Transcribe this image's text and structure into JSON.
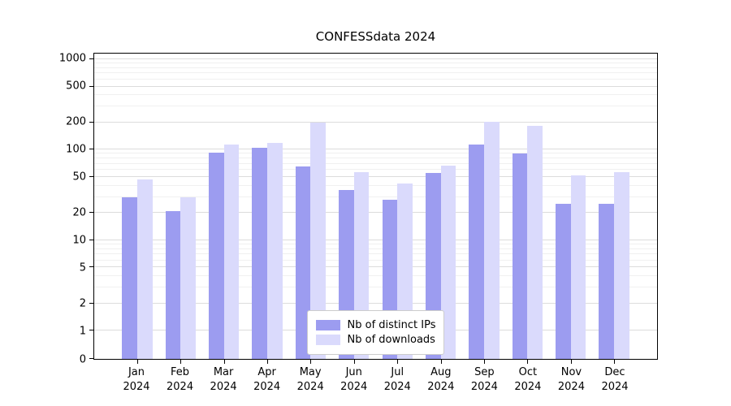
{
  "title": "CONFESSdata 2024",
  "legend": {
    "items": [
      {
        "label": "Nb of distinct IPs",
        "color": "#9c9cf0"
      },
      {
        "label": "Nb of downloads",
        "color": "#dadafc"
      }
    ]
  },
  "chart_data": {
    "type": "bar",
    "title": "CONFESSdata 2024",
    "categories": [
      "Jan 2024",
      "Feb 2024",
      "Mar 2024",
      "Apr 2024",
      "May 2024",
      "Jun 2024",
      "Jul 2024",
      "Aug 2024",
      "Sep 2024",
      "Oct 2024",
      "Nov 2024",
      "Dec 2024"
    ],
    "series": [
      {
        "name": "Nb of distinct IPs",
        "color": "#9c9cf0",
        "values": [
          30,
          21,
          93,
          105,
          65,
          36,
          28,
          55,
          115,
          90,
          25,
          25
        ]
      },
      {
        "name": "Nb of downloads",
        "color": "#dadafc",
        "values": [
          47,
          30,
          113,
          118,
          200,
          57,
          42,
          66,
          205,
          185,
          52,
          57
        ]
      }
    ],
    "yscale": "symlog",
    "y_ticks": [
      0,
      1,
      2,
      5,
      10,
      20,
      50,
      100,
      200,
      500,
      1000
    ],
    "y_minor_ticks": [
      3,
      4,
      6,
      7,
      8,
      9,
      30,
      40,
      60,
      70,
      80,
      90,
      300,
      400,
      600,
      700,
      800,
      900
    ],
    "ylim": [
      0,
      1150
    ],
    "grid": true,
    "legend_position": "lower center"
  }
}
